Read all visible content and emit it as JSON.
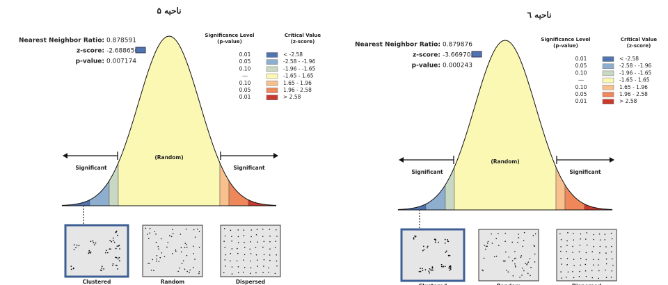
{
  "panels": [
    {
      "title": "ناحیه ۵",
      "stats": [
        {
          "label": "Nearest Neighbor Ratio:",
          "value": 0.878591
        },
        {
          "label": "z-score:",
          "value": -2.688656
        },
        {
          "label": "p-value:",
          "value": 0.007174
        }
      ],
      "legend": {
        "p_header": [
          "Significance Level",
          "(p-value)"
        ],
        "z_header": [
          "Critical Value",
          "(z-score)"
        ],
        "rows": [
          {
            "p": "0.01",
            "z": "< -2.58",
            "color": "#4f74b0"
          },
          {
            "p": "0.05",
            "z": "-2.58 - -1.96",
            "color": "#8eaed0"
          },
          {
            "p": "0.10",
            "z": "-1.96 - -1.65",
            "color": "#c9d8c2"
          },
          {
            "p": "---",
            "z": "-1.65 - 1.65",
            "color": "#fbf8b4"
          },
          {
            "p": "0.10",
            "z": "1.65 - 1.96",
            "color": "#f7c08c"
          },
          {
            "p": "0.05",
            "z": "1.96 - 2.58",
            "color": "#ee875a"
          },
          {
            "p": "0.01",
            "z": "> 2.58",
            "color": "#c93a2c"
          }
        ]
      },
      "significant_left": "Significant",
      "random_label": "(Random)",
      "significant_right": "Significant",
      "patterns": [
        "Clustered",
        "Random",
        "Dispersed"
      ]
    },
    {
      "title": "ناحیه ٦",
      "stats": [
        {
          "label": "Nearest Neighbor Ratio:",
          "value": 0.879876
        },
        {
          "label": "z-score:",
          "value": -3.669705
        },
        {
          "label": "p-value:",
          "value": 0.000243
        }
      ],
      "legend": {
        "p_header": [
          "Significance Level",
          "(p-value)"
        ],
        "z_header": [
          "Critical Value",
          "(z-score)"
        ],
        "rows": [
          {
            "p": "0.01",
            "z": "< -2.58",
            "color": "#4f74b0"
          },
          {
            "p": "0.05",
            "z": "-2.58 - -1.96",
            "color": "#8eaed0"
          },
          {
            "p": "0.10",
            "z": "-1.96 - -1.65",
            "color": "#c9d8c2"
          },
          {
            "p": "---",
            "z": "-1.65 - 1.65",
            "color": "#fbf8b4"
          },
          {
            "p": "0.10",
            "z": "1.65 - 1.96",
            "color": "#f7c08c"
          },
          {
            "p": "0.05",
            "z": "1.96 - 2.58",
            "color": "#ee875a"
          },
          {
            "p": "0.01",
            "z": "> 2.58",
            "color": "#c93a2c"
          }
        ]
      },
      "significant_left": "Significant",
      "random_label": "(Random)",
      "significant_right": "Significant",
      "patterns": [
        "Clustered",
        "Random",
        "Dispersed"
      ]
    }
  ]
}
